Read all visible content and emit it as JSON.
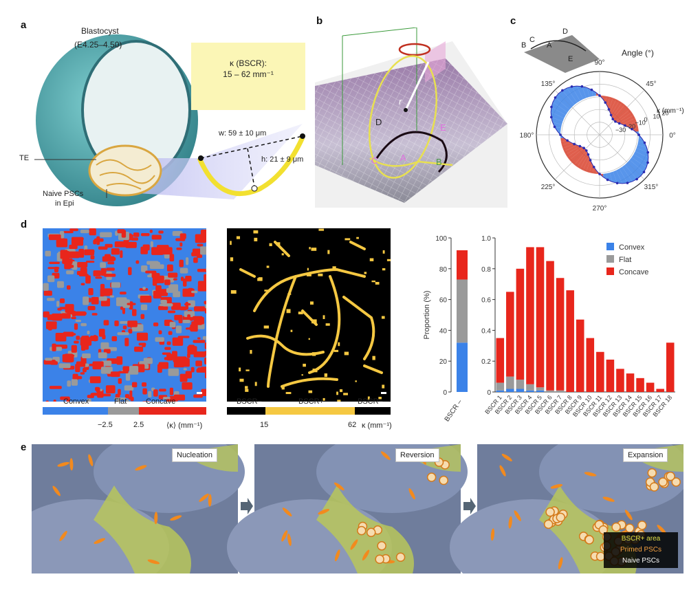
{
  "panels": {
    "a": "a",
    "b": "b",
    "c": "c",
    "d": "d",
    "e": "e"
  },
  "panel_a": {
    "title": "Blastocyst",
    "stage": "(E4.25–4.50)",
    "kappa_label": "κ (BSCR):",
    "kappa_range": "15 – 62 mm⁻¹",
    "width": "w: 59 ± 10 μm",
    "height": "h: 21 ± 9 μm",
    "te": "TE",
    "naive1": "Naive PSCs",
    "naive2": "in Epi"
  },
  "panel_b": {
    "r": "r",
    "points": {
      "A": "A",
      "B": "B",
      "C": "C",
      "D": "D",
      "E": "E"
    }
  },
  "panel_c": {
    "angle_title": "Angle (°)",
    "kappa_axis": "κ (mm⁻¹)",
    "angle_ticks": [
      "90°",
      "45°",
      "0°",
      "315°",
      "270°",
      "225°",
      "180°",
      "135°"
    ],
    "radial_ticks": [
      "20",
      "10",
      "0",
      "−10",
      "−20",
      "−30"
    ],
    "points": {
      "A": "A",
      "B": "B",
      "C": "C",
      "D": "D",
      "E": "E"
    }
  },
  "panel_d": {
    "map1_legend": [
      "Convex",
      "Flat",
      "Concave"
    ],
    "map1_ticks": [
      "−2.5",
      "2.5"
    ],
    "map1_unit": "⟨κ⟩ (mm⁻¹)",
    "map2_legend": [
      "BSCR−",
      "BSCR+",
      "BSCR−"
    ],
    "map2_ticks": [
      "15",
      "62"
    ],
    "map2_unit": "κ (mm⁻¹)",
    "colors": {
      "convex": "#3b82e8",
      "flat": "#9a9a9a",
      "concave": "#e8261c",
      "bscr": "#f5c842",
      "black": "#000000"
    }
  },
  "chart_data": [
    {
      "type": "bar",
      "stacked": true,
      "categories": [
        "BSCR –"
      ],
      "ylabel": "Proportion (%)",
      "ylim": [
        0,
        100
      ],
      "yticks": [
        "0",
        "20",
        "40",
        "60",
        "80",
        "100"
      ],
      "series": [
        {
          "name": "Convex",
          "values": [
            32
          ]
        },
        {
          "name": "Flat",
          "values": [
            41
          ]
        },
        {
          "name": "Concave",
          "values": [
            19
          ]
        }
      ]
    },
    {
      "type": "bar",
      "stacked": true,
      "categories": [
        "BSCR 1",
        "BSCR 2",
        "BSCR 3",
        "BSCR 4",
        "BSCR 5",
        "BSCR 6",
        "BSCR 7",
        "BSCR 8",
        "BSCR 9",
        "BSCR 10",
        "BSCR 11",
        "BSCR 12",
        "BSCR 13",
        "BSCR 14",
        "BSCR 15",
        "BSCR 16",
        "BSCR 17",
        "BSCR 18"
      ],
      "ylim": [
        0,
        1.0
      ],
      "yticks": [
        "0",
        "0.2",
        "0.4",
        "0.6",
        "0.8",
        "1.0"
      ],
      "legend_position": "top-right",
      "series": [
        {
          "name": "Convex",
          "values": [
            0.01,
            0.02,
            0.02,
            0.01,
            0.01,
            0.0,
            0.0,
            0.0,
            0.0,
            0.0,
            0.0,
            0.0,
            0.0,
            0.0,
            0.0,
            0.0,
            0.0,
            0.0
          ]
        },
        {
          "name": "Flat",
          "values": [
            0.05,
            0.08,
            0.06,
            0.04,
            0.02,
            0.01,
            0.01,
            0.0,
            0.0,
            0.0,
            0.0,
            0.0,
            0.0,
            0.0,
            0.0,
            0.0,
            0.0,
            0.0
          ]
        },
        {
          "name": "Concave",
          "values": [
            0.29,
            0.55,
            0.72,
            0.89,
            0.91,
            0.84,
            0.73,
            0.66,
            0.47,
            0.35,
            0.26,
            0.21,
            0.15,
            0.12,
            0.09,
            0.06,
            0.02,
            0.32
          ]
        }
      ]
    }
  ],
  "panel_e": {
    "stage1": "Nucleation",
    "stage2": "Reversion",
    "stage3": "Expansion",
    "legend": [
      "BSCR+ area",
      "Primed PSCs",
      "Naive PSCs"
    ]
  }
}
